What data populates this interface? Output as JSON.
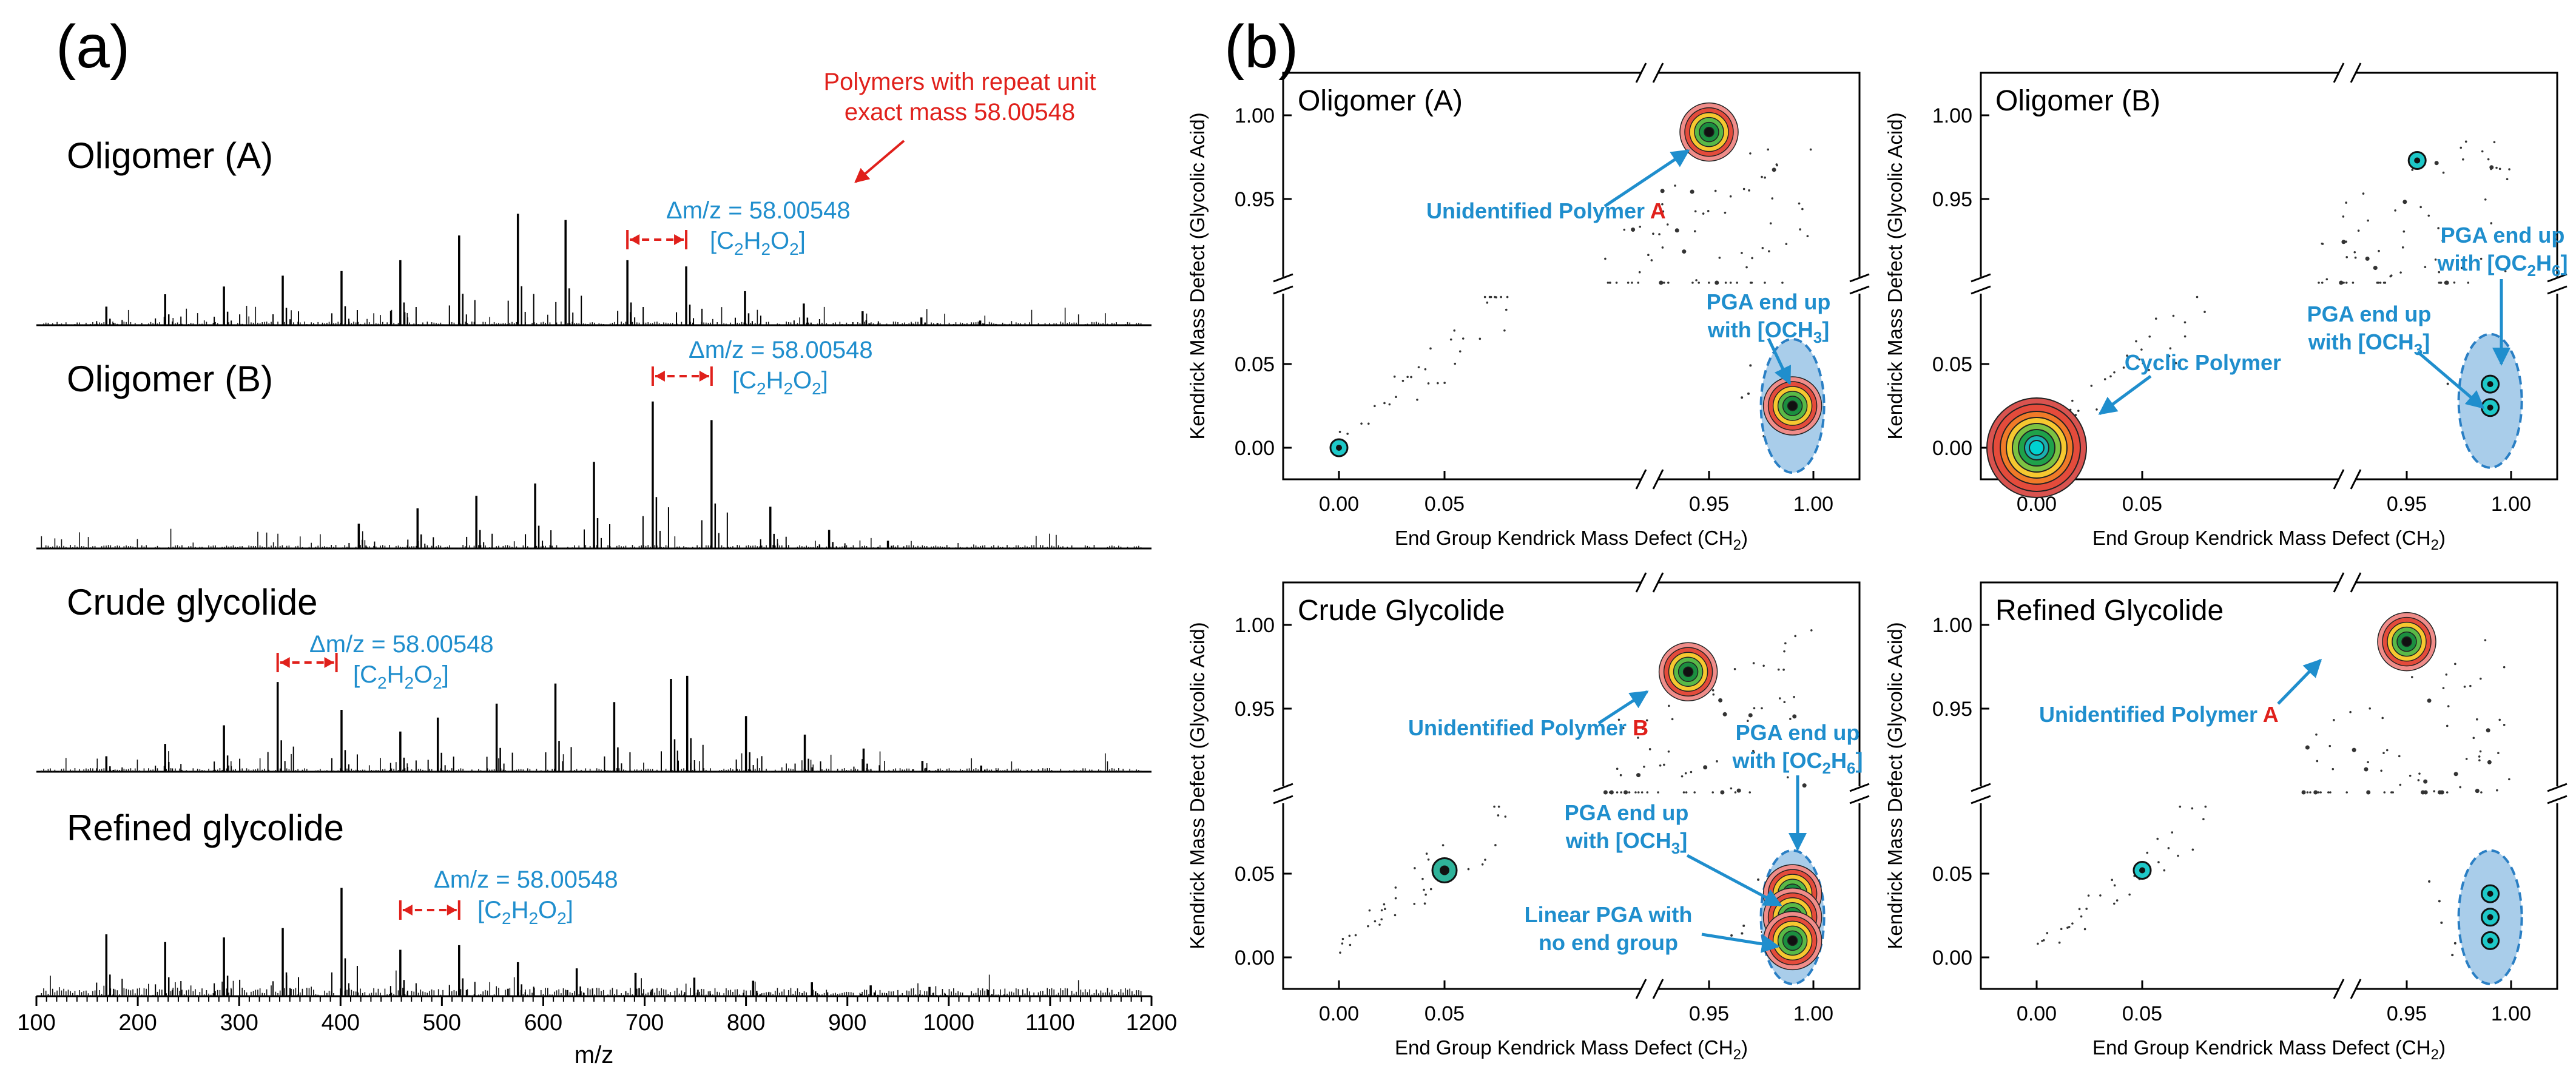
{
  "figure": {
    "panel_a_label": "(a)",
    "panel_b_label": "(b)",
    "colors": {
      "blue": "#1f8ecd",
      "red": "#e0201b",
      "ellipse_fill": "#a9cdea",
      "ellipse_stroke": "#2a7fc4"
    }
  },
  "spectra": {
    "annotation": {
      "line1": "Polymers with repeat unit",
      "line2": "exact mass 58.00548"
    },
    "delta_label": "Δm/z = 58.00548",
    "formula_label": "[C2H2O2]",
    "panels": [
      {
        "title": "Oligomer (A)"
      },
      {
        "title": "Oligomer (B)"
      },
      {
        "title": "Crude glycolide"
      },
      {
        "title": "Refined glycolide"
      }
    ]
  },
  "chart_data": [
    {
      "type": "bar",
      "title": "Oligomer (A)",
      "xlabel": "m/z",
      "xlim": [
        100,
        1200
      ],
      "x": [
        169,
        227,
        285,
        343,
        401,
        459,
        517,
        575,
        622,
        683,
        741,
        799,
        857,
        915,
        973,
        1031
      ],
      "values": [
        0.12,
        0.2,
        0.25,
        0.32,
        0.35,
        0.42,
        0.58,
        0.72,
        0.68,
        0.42,
        0.38,
        0.22,
        0.14,
        0.09,
        0.05,
        0.03
      ]
    },
    {
      "type": "bar",
      "title": "Oligomer (B)",
      "xlabel": "m/z",
      "xlim": [
        100,
        1200
      ],
      "x": [
        418,
        476,
        534,
        592,
        650,
        708,
        766,
        824,
        882,
        940
      ],
      "values": [
        0.16,
        0.26,
        0.34,
        0.42,
        0.56,
        0.95,
        0.83,
        0.27,
        0.12,
        0.05
      ]
    },
    {
      "type": "bar",
      "title": "Crude glycolide",
      "xlabel": "m/z",
      "xlim": [
        100,
        1200
      ],
      "x": [
        169,
        227,
        285,
        338,
        401,
        459,
        496,
        554,
        612,
        670,
        726,
        742,
        800,
        858,
        916,
        974,
        1032
      ],
      "values": [
        0.1,
        0.18,
        0.3,
        0.58,
        0.4,
        0.26,
        0.35,
        0.44,
        0.57,
        0.45,
        0.6,
        0.62,
        0.36,
        0.24,
        0.15,
        0.07,
        0.04
      ]
    },
    {
      "type": "bar",
      "title": "Refined glycolide",
      "xlabel": "m/z",
      "xlim": [
        100,
        1200
      ],
      "x": [
        169,
        227,
        285,
        343,
        401,
        459,
        517,
        575,
        633,
        691,
        749,
        807,
        865,
        923,
        981,
        1039
      ],
      "values": [
        0.4,
        0.35,
        0.38,
        0.44,
        0.7,
        0.3,
        0.33,
        0.22,
        0.18,
        0.15,
        0.12,
        0.1,
        0.09,
        0.07,
        0.06,
        0.04
      ]
    },
    {
      "type": "scatter",
      "title": "Oligomer (A)",
      "xlabel": "End Group Kendrick Mass Defect (CH2)",
      "ylabel": "Kendrick Mass Defect (Glycolic Acid)",
      "x_ticks": [
        "0.00",
        "0.05",
        "0.95",
        "1.00"
      ],
      "y_ticks": [
        "0.00",
        "0.05",
        "0.95",
        "1.00"
      ],
      "annotations": [
        "Unidentified Polymer A",
        "PGA end up with [OCH3]"
      ],
      "clusters": [
        {
          "x": 0.95,
          "y": 0.99,
          "size": "large"
        },
        {
          "x": 0.99,
          "y": 0.025,
          "size": "large"
        },
        {
          "x": 0.0,
          "y": 0.0,
          "size": "small"
        }
      ]
    },
    {
      "type": "scatter",
      "title": "Oligomer (B)",
      "xlabel": "End Group Kendrick Mass Defect (CH2)",
      "ylabel": "Kendrick Mass Defect (Glycolic Acid)",
      "x_ticks": [
        "0.00",
        "0.05",
        "0.95",
        "1.00"
      ],
      "y_ticks": [
        "0.00",
        "0.05",
        "0.95",
        "1.00"
      ],
      "annotations": [
        "PGA end up with [OC2H6]",
        "PGA end up with [OCH3]",
        "Cyclic Polymer"
      ],
      "clusters": [
        {
          "x": 0.0,
          "y": 0.0,
          "size": "xlarge"
        },
        {
          "x": 0.955,
          "y": 0.973,
          "size": "small"
        },
        {
          "x": 0.99,
          "y": 0.038,
          "size": "small"
        },
        {
          "x": 0.99,
          "y": 0.024,
          "size": "small"
        }
      ]
    },
    {
      "type": "scatter",
      "title": "Crude Glycolide",
      "xlabel": "End Group Kendrick Mass Defect (CH2)",
      "ylabel": "Kendrick Mass Defect (Glycolic Acid)",
      "x_ticks": [
        "0.00",
        "0.05",
        "0.95",
        "1.00"
      ],
      "y_ticks": [
        "0.00",
        "0.05",
        "0.95",
        "1.00"
      ],
      "annotations": [
        "Unidentified Polymer B",
        "PGA end up with [OC2H6]",
        "PGA end up with [OCH3]",
        "Linear PGA with no end group"
      ],
      "clusters": [
        {
          "x": 0.94,
          "y": 0.972,
          "size": "large"
        },
        {
          "x": 0.99,
          "y": 0.038,
          "size": "large"
        },
        {
          "x": 0.99,
          "y": 0.024,
          "size": "large"
        },
        {
          "x": 0.99,
          "y": 0.01,
          "size": "large"
        },
        {
          "x": 0.05,
          "y": 0.052,
          "size": "medium"
        }
      ]
    },
    {
      "type": "scatter",
      "title": "Refined Glycolide",
      "xlabel": "End Group Kendrick Mass Defect (CH2)",
      "ylabel": "Kendrick Mass Defect (Glycolic Acid)",
      "x_ticks": [
        "0.00",
        "0.05",
        "0.95",
        "1.00"
      ],
      "y_ticks": [
        "0.00",
        "0.05",
        "0.95",
        "1.00"
      ],
      "annotations": [
        "Unidentified Polymer A"
      ],
      "clusters": [
        {
          "x": 0.95,
          "y": 0.99,
          "size": "large"
        },
        {
          "x": 0.05,
          "y": 0.052,
          "size": "small"
        },
        {
          "x": 0.99,
          "y": 0.038,
          "size": "small"
        },
        {
          "x": 0.99,
          "y": 0.024,
          "size": "small"
        },
        {
          "x": 0.99,
          "y": 0.01,
          "size": "small"
        }
      ]
    }
  ],
  "spectrum_axis": {
    "label": "m/z",
    "ticks": [
      "100",
      "200",
      "300",
      "400",
      "500",
      "600",
      "700",
      "800",
      "900",
      "1000",
      "1100",
      "1200"
    ]
  },
  "kmd_axes": {
    "xlabel": "End Group Kendrick Mass Defect (CH",
    "xlabel_sub": "2",
    "xlabel_end": ")",
    "ylabel": "Kendrick Mass Defect (Glycolic Acid)",
    "x_ticks": [
      "0.00",
      "0.05",
      "0.95",
      "1.00"
    ],
    "y_ticks": [
      "0.00",
      "0.05",
      "0.95",
      "1.00"
    ]
  },
  "kmd_panels": [
    {
      "title": "Oligomer (A)",
      "labels": [
        {
          "text1": "Unidentified  Polymer ",
          "red": "A"
        },
        {
          "text1": "PGA end up",
          "text2": "with [OCH3]"
        }
      ]
    },
    {
      "title": "Oligomer (B)",
      "labels": [
        {
          "text1": "PGA end up",
          "text2": "with [OC2H6]"
        },
        {
          "text1": "PGA end up",
          "text2": "with [OCH3]"
        },
        {
          "text1": "Cyclic  Polymer"
        }
      ]
    },
    {
      "title": "Crude Glycolide",
      "labels": [
        {
          "text1": "Unidentified  Polymer ",
          "red": "B"
        },
        {
          "text1": "PGA end up",
          "text2": "with [OC2H6]"
        },
        {
          "text1": "PGA end up",
          "text2": "with [OCH3]"
        },
        {
          "text1": "Linear PGA with",
          "text2": "no end group"
        }
      ]
    },
    {
      "title": "Refined Glycolide",
      "labels": [
        {
          "text1": "Unidentified  Polymer ",
          "red": "A"
        }
      ]
    }
  ]
}
